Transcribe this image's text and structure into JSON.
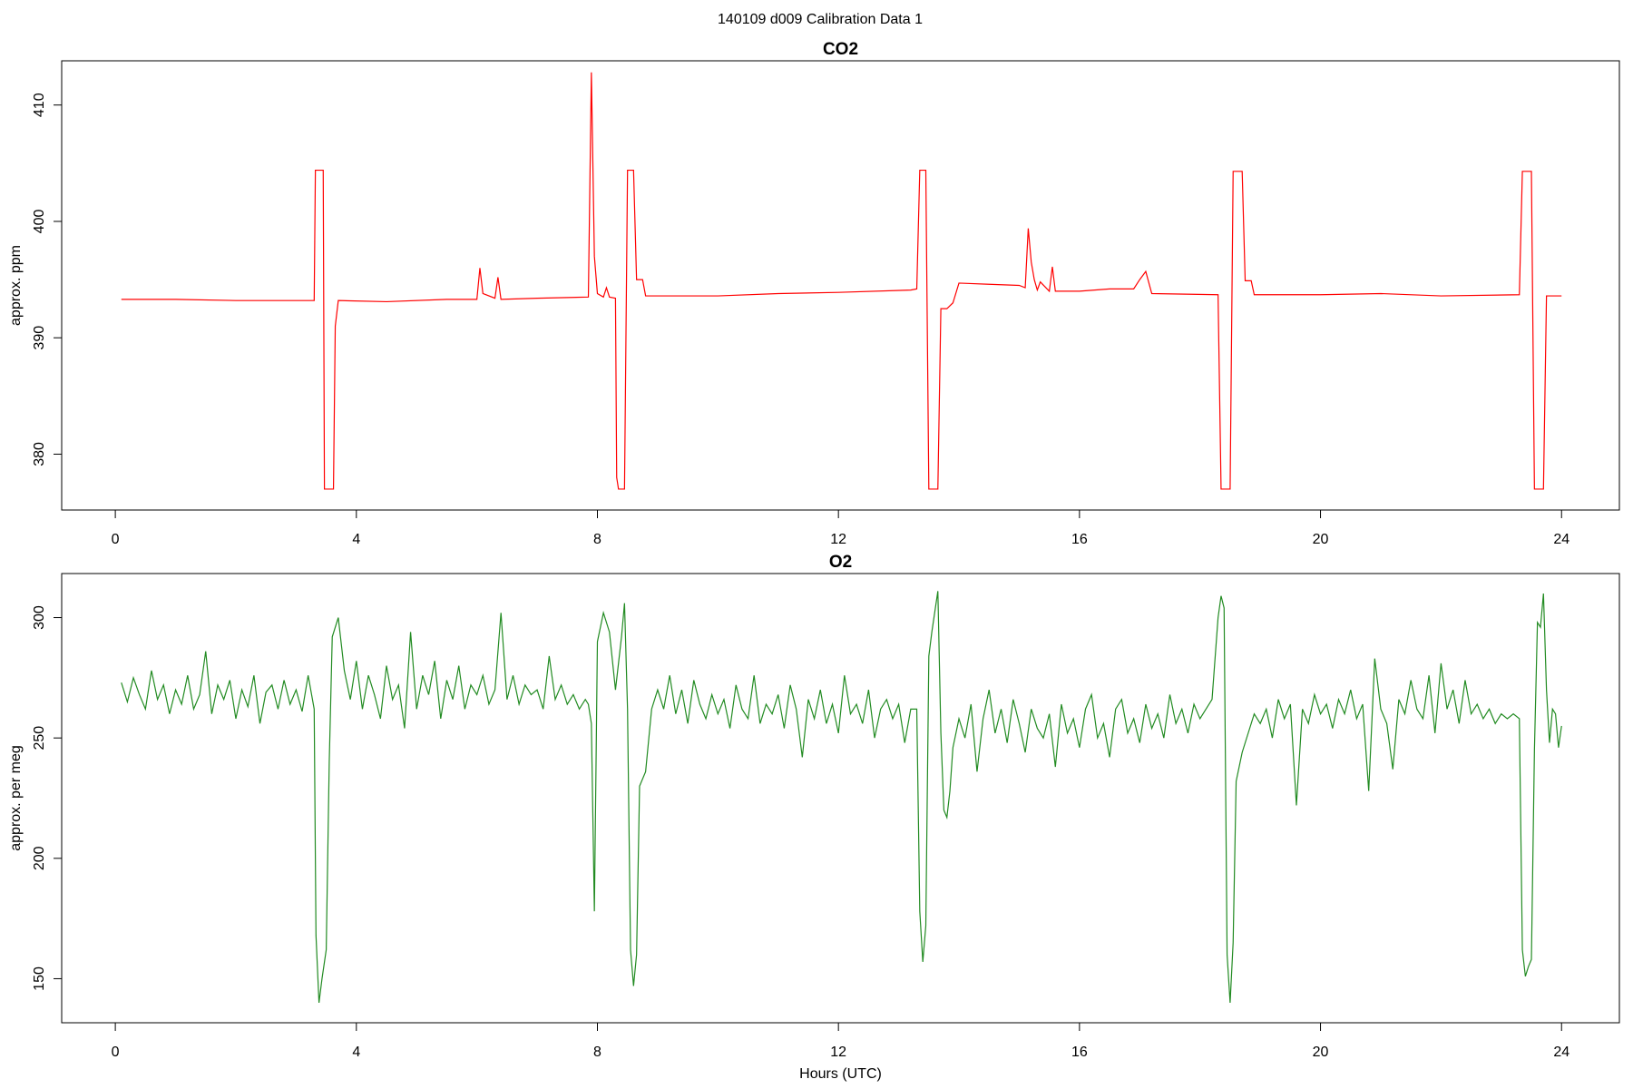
{
  "title": "140109   d009   Calibration Data 1",
  "chart_data": [
    {
      "type": "line",
      "title": "CO2",
      "ylabel": "approx. ppm",
      "color": "#ff0000",
      "grid": false,
      "xlim": [
        -0.89,
        24.96
      ],
      "xticks": [
        0,
        4,
        8,
        12,
        16,
        20,
        24
      ],
      "ylim": [
        375.2,
        413.8
      ],
      "yticks": [
        380,
        390,
        400,
        410
      ],
      "x": [
        0.1,
        1.0,
        2.0,
        3.0,
        3.3,
        3.32,
        3.45,
        3.47,
        3.5,
        3.62,
        3.65,
        3.7,
        4.5,
        5.5,
        6.0,
        6.05,
        6.1,
        6.3,
        6.35,
        6.4,
        7.0,
        7.85,
        7.9,
        7.95,
        8.0,
        8.1,
        8.15,
        8.2,
        8.3,
        8.32,
        8.35,
        8.45,
        8.5,
        8.6,
        8.65,
        8.75,
        8.8,
        10.0,
        11.0,
        12.0,
        13.2,
        13.3,
        13.35,
        13.45,
        13.5,
        13.65,
        13.7,
        13.8,
        13.9,
        14.0,
        14.5,
        15.0,
        15.1,
        15.15,
        15.2,
        15.25,
        15.3,
        15.35,
        15.5,
        15.55,
        15.6,
        16.0,
        16.5,
        16.9,
        17.0,
        17.1,
        17.2,
        18.3,
        18.35,
        18.5,
        18.55,
        18.7,
        18.75,
        18.85,
        18.9,
        20.0,
        21.0,
        22.0,
        23.3,
        23.35,
        23.5,
        23.55,
        23.7,
        23.75,
        24.0
      ],
      "values": [
        393.3,
        393.3,
        393.2,
        393.2,
        393.2,
        404.4,
        404.4,
        377.0,
        377.0,
        377.0,
        391.0,
        393.2,
        393.1,
        393.3,
        393.3,
        396.0,
        393.8,
        393.4,
        395.2,
        393.3,
        393.4,
        393.5,
        412.8,
        397.0,
        393.8,
        393.5,
        394.3,
        393.5,
        393.4,
        378.0,
        377.0,
        377.0,
        404.4,
        404.4,
        395.0,
        395.0,
        393.6,
        393.6,
        393.8,
        393.9,
        394.1,
        394.2,
        404.4,
        404.4,
        377.0,
        377.0,
        392.5,
        392.5,
        393.0,
        394.7,
        394.6,
        394.5,
        394.3,
        399.4,
        396.5,
        395.0,
        394.1,
        394.8,
        394.0,
        396.1,
        394.0,
        394.0,
        394.2,
        394.2,
        395.0,
        395.7,
        393.8,
        393.7,
        377.0,
        377.0,
        404.3,
        404.3,
        394.9,
        394.9,
        393.7,
        393.7,
        393.8,
        393.6,
        393.7,
        404.3,
        404.3,
        377.0,
        377.0,
        393.6,
        393.6
      ]
    },
    {
      "type": "line",
      "title": "O2",
      "ylabel": "approx. per meg",
      "xlabel": "Hours (UTC)",
      "color": "#228b22",
      "grid": false,
      "xlim": [
        -0.89,
        24.96
      ],
      "xticks": [
        0,
        4,
        8,
        12,
        16,
        20,
        24
      ],
      "ylim": [
        131.7,
        318.3
      ],
      "yticks": [
        150,
        200,
        250,
        300
      ],
      "x": [
        0.1,
        0.2,
        0.3,
        0.4,
        0.5,
        0.6,
        0.7,
        0.8,
        0.9,
        1.0,
        1.1,
        1.2,
        1.3,
        1.4,
        1.5,
        1.6,
        1.7,
        1.8,
        1.9,
        2.0,
        2.1,
        2.2,
        2.3,
        2.4,
        2.5,
        2.6,
        2.7,
        2.8,
        2.9,
        3.0,
        3.1,
        3.2,
        3.3,
        3.33,
        3.38,
        3.43,
        3.5,
        3.55,
        3.6,
        3.7,
        3.8,
        3.9,
        4.0,
        4.1,
        4.2,
        4.3,
        4.4,
        4.5,
        4.6,
        4.7,
        4.8,
        4.9,
        5.0,
        5.1,
        5.2,
        5.3,
        5.4,
        5.5,
        5.6,
        5.7,
        5.8,
        5.9,
        6.0,
        6.1,
        6.2,
        6.3,
        6.4,
        6.5,
        6.6,
        6.7,
        6.8,
        6.9,
        7.0,
        7.1,
        7.2,
        7.3,
        7.4,
        7.5,
        7.6,
        7.7,
        7.8,
        7.85,
        7.9,
        7.95,
        8.0,
        8.1,
        8.2,
        8.3,
        8.4,
        8.45,
        8.5,
        8.55,
        8.6,
        8.65,
        8.7,
        8.8,
        8.9,
        9.0,
        9.1,
        9.2,
        9.3,
        9.4,
        9.5,
        9.6,
        9.7,
        9.8,
        9.9,
        10.0,
        10.1,
        10.2,
        10.3,
        10.4,
        10.5,
        10.6,
        10.7,
        10.8,
        10.9,
        11.0,
        11.1,
        11.2,
        11.3,
        11.4,
        11.5,
        11.6,
        11.7,
        11.8,
        11.9,
        12.0,
        12.1,
        12.2,
        12.3,
        12.4,
        12.5,
        12.6,
        12.7,
        12.8,
        12.9,
        13.0,
        13.1,
        13.2,
        13.3,
        13.35,
        13.4,
        13.45,
        13.5,
        13.55,
        13.65,
        13.7,
        13.75,
        13.8,
        13.85,
        13.9,
        14.0,
        14.1,
        14.2,
        14.3,
        14.4,
        14.5,
        14.6,
        14.7,
        14.8,
        14.9,
        15.0,
        15.1,
        15.2,
        15.3,
        15.4,
        15.5,
        15.6,
        15.7,
        15.8,
        15.9,
        16.0,
        16.1,
        16.2,
        16.3,
        16.4,
        16.5,
        16.6,
        16.7,
        16.8,
        16.9,
        17.0,
        17.1,
        17.2,
        17.3,
        17.4,
        17.5,
        17.6,
        17.7,
        17.8,
        17.9,
        18.0,
        18.1,
        18.2,
        18.3,
        18.35,
        18.4,
        18.45,
        18.5,
        18.55,
        18.6,
        18.7,
        18.8,
        18.9,
        19.0,
        19.1,
        19.2,
        19.3,
        19.4,
        19.5,
        19.6,
        19.7,
        19.8,
        19.9,
        20.0,
        20.1,
        20.2,
        20.3,
        20.4,
        20.5,
        20.6,
        20.7,
        20.8,
        20.9,
        21.0,
        21.1,
        21.2,
        21.3,
        21.4,
        21.5,
        21.6,
        21.7,
        21.8,
        21.9,
        22.0,
        22.1,
        22.2,
        22.3,
        22.4,
        22.5,
        22.6,
        22.7,
        22.8,
        22.9,
        23.0,
        23.1,
        23.2,
        23.3,
        23.35,
        23.4,
        23.45,
        23.5,
        23.55,
        23.6,
        23.65,
        23.7,
        23.75,
        23.8,
        23.85,
        23.9,
        23.95,
        24.0
      ],
      "values": [
        273,
        265,
        275,
        268,
        262,
        278,
        266,
        272,
        260,
        270,
        264,
        276,
        262,
        268,
        286,
        260,
        272,
        266,
        274,
        258,
        270,
        263,
        276,
        256,
        269,
        272,
        262,
        274,
        264,
        270,
        261,
        276,
        262,
        168,
        140,
        150,
        162,
        240,
        292,
        300,
        278,
        266,
        282,
        262,
        276,
        268,
        258,
        280,
        266,
        272,
        254,
        294,
        262,
        276,
        268,
        282,
        258,
        274,
        266,
        280,
        262,
        272,
        268,
        276,
        264,
        270,
        302,
        266,
        276,
        264,
        272,
        268,
        270,
        262,
        284,
        266,
        272,
        264,
        268,
        262,
        266,
        264,
        256,
        178,
        290,
        302,
        294,
        270,
        292,
        306,
        262,
        162,
        147,
        160,
        230,
        236,
        262,
        270,
        262,
        276,
        260,
        270,
        256,
        274,
        264,
        258,
        268,
        260,
        266,
        254,
        272,
        262,
        258,
        276,
        256,
        264,
        260,
        268,
        254,
        272,
        262,
        242,
        266,
        258,
        270,
        256,
        264,
        252,
        276,
        260,
        264,
        256,
        270,
        250,
        262,
        266,
        258,
        264,
        248,
        262,
        262,
        178,
        157,
        172,
        284,
        294,
        311,
        252,
        220,
        217,
        228,
        246,
        258,
        250,
        264,
        236,
        258,
        270,
        252,
        262,
        248,
        266,
        256,
        244,
        262,
        254,
        250,
        260,
        238,
        264,
        252,
        258,
        246,
        262,
        268,
        250,
        256,
        242,
        262,
        266,
        252,
        258,
        248,
        264,
        254,
        260,
        250,
        268,
        256,
        262,
        252,
        264,
        258,
        262,
        266,
        300,
        309,
        304,
        160,
        140,
        165,
        232,
        244,
        252,
        260,
        256,
        262,
        250,
        266,
        258,
        264,
        222,
        262,
        256,
        268,
        260,
        264,
        254,
        266,
        260,
        270,
        258,
        264,
        228,
        283,
        262,
        256,
        237,
        266,
        260,
        274,
        262,
        258,
        276,
        252,
        281,
        262,
        270,
        256,
        274,
        260,
        264,
        258,
        262,
        256,
        260,
        258,
        260,
        258,
        162,
        151,
        155,
        158,
        245,
        298,
        296,
        310,
        270,
        248,
        262,
        260,
        246,
        255
      ]
    }
  ]
}
